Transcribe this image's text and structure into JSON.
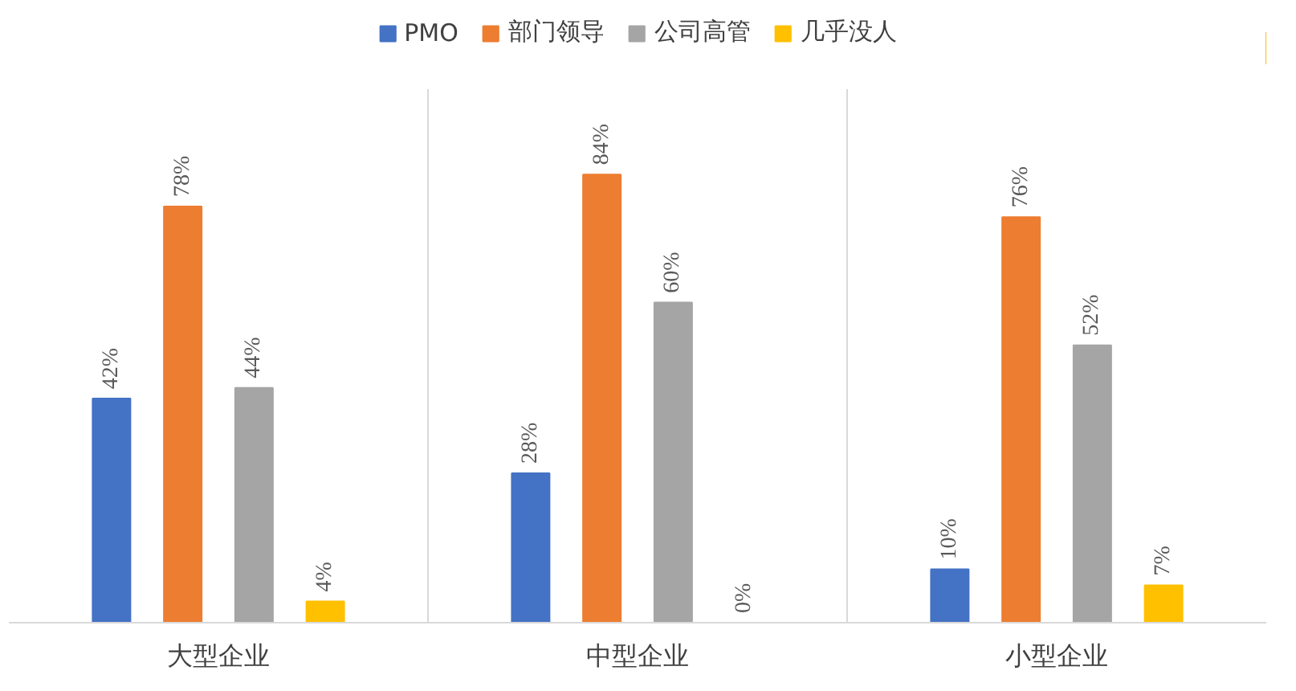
{
  "chart_data": {
    "type": "bar",
    "categories": [
      "大型企业",
      "中型企业",
      "小型企业"
    ],
    "series": [
      {
        "name": "PMO",
        "color": "#4472c4",
        "values": [
          42,
          28,
          10
        ],
        "value_labels": [
          "42%",
          "28%",
          "10%"
        ]
      },
      {
        "name": "部门领导",
        "color": "#ed7d31",
        "values": [
          78,
          84,
          76
        ],
        "value_labels": [
          "78%",
          "84%",
          "76%"
        ]
      },
      {
        "name": "公司高管",
        "color": "#a5a5a5",
        "values": [
          44,
          60,
          52
        ],
        "value_labels": [
          "44%",
          "60%",
          "52%"
        ]
      },
      {
        "name": "几乎没人",
        "color": "#ffc000",
        "values": [
          4,
          0,
          7
        ],
        "value_labels": [
          "4%",
          "0%",
          "7%"
        ]
      }
    ],
    "ylim": [
      0,
      100
    ],
    "tick_labels": "x",
    "grid": "x",
    "legend": "top"
  }
}
